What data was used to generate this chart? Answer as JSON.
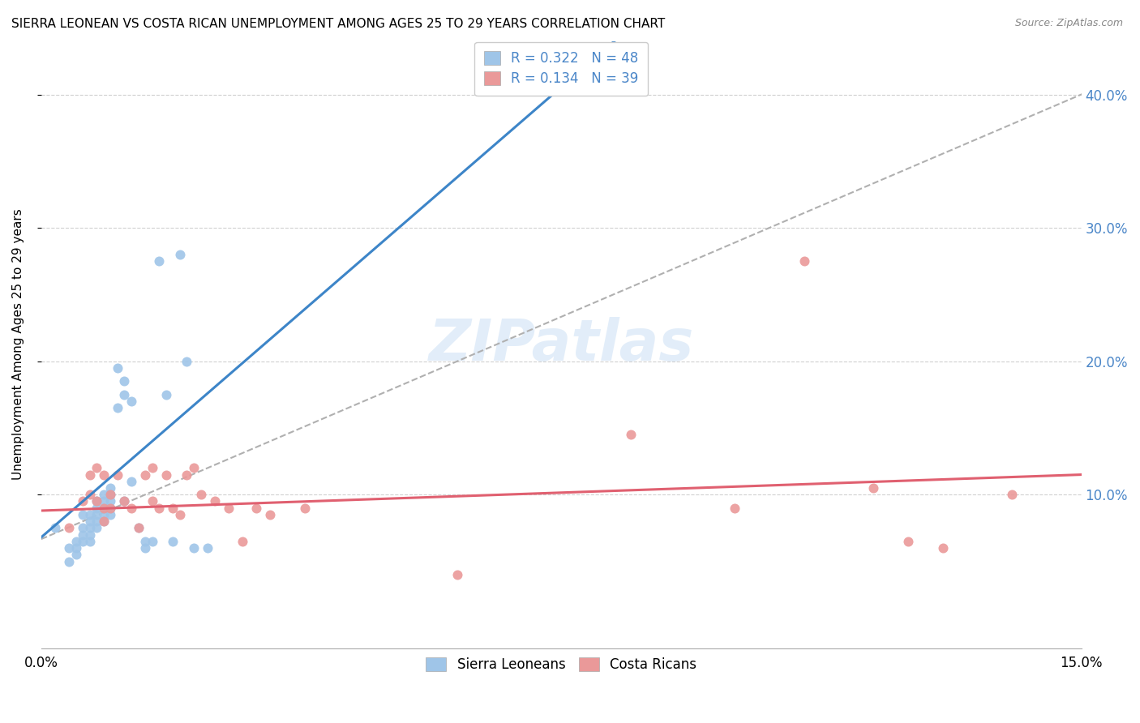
{
  "title": "SIERRA LEONEAN VS COSTA RICAN UNEMPLOYMENT AMONG AGES 25 TO 29 YEARS CORRELATION CHART",
  "source": "Source: ZipAtlas.com",
  "ylabel": "Unemployment Among Ages 25 to 29 years",
  "yticks": [
    0.1,
    0.2,
    0.3,
    0.4
  ],
  "ytick_labels": [
    "10.0%",
    "20.0%",
    "30.0%",
    "40.0%"
  ],
  "xlim": [
    0.0,
    0.15
  ],
  "ylim": [
    -0.015,
    0.44
  ],
  "legend_sl_R": "0.322",
  "legend_sl_N": "48",
  "legend_cr_R": "0.134",
  "legend_cr_N": "39",
  "color_sl": "#9fc5e8",
  "color_cr": "#ea9999",
  "color_sl_line": "#3d85c8",
  "color_cr_line": "#e06070",
  "color_dashed": "#b0b0b0",
  "watermark": "ZIPatlas",
  "sl_x": [
    0.002,
    0.004,
    0.004,
    0.005,
    0.005,
    0.005,
    0.006,
    0.006,
    0.006,
    0.006,
    0.007,
    0.007,
    0.007,
    0.007,
    0.007,
    0.008,
    0.008,
    0.008,
    0.008,
    0.008,
    0.009,
    0.009,
    0.009,
    0.009,
    0.009,
    0.01,
    0.01,
    0.01,
    0.01,
    0.01,
    0.011,
    0.011,
    0.012,
    0.012,
    0.012,
    0.013,
    0.013,
    0.014,
    0.015,
    0.015,
    0.016,
    0.017,
    0.018,
    0.019,
    0.02,
    0.021,
    0.022,
    0.024
  ],
  "sl_y": [
    0.075,
    0.06,
    0.05,
    0.065,
    0.06,
    0.055,
    0.085,
    0.075,
    0.07,
    0.065,
    0.085,
    0.08,
    0.075,
    0.07,
    0.065,
    0.09,
    0.085,
    0.08,
    0.095,
    0.075,
    0.095,
    0.09,
    0.085,
    0.08,
    0.1,
    0.095,
    0.09,
    0.085,
    0.105,
    0.1,
    0.165,
    0.195,
    0.185,
    0.175,
    0.095,
    0.17,
    0.11,
    0.075,
    0.065,
    0.06,
    0.065,
    0.275,
    0.175,
    0.065,
    0.28,
    0.2,
    0.06,
    0.06
  ],
  "cr_x": [
    0.004,
    0.006,
    0.007,
    0.007,
    0.008,
    0.008,
    0.009,
    0.009,
    0.009,
    0.01,
    0.01,
    0.011,
    0.012,
    0.013,
    0.014,
    0.015,
    0.016,
    0.016,
    0.017,
    0.018,
    0.019,
    0.02,
    0.021,
    0.022,
    0.023,
    0.025,
    0.027,
    0.029,
    0.031,
    0.033,
    0.038,
    0.06,
    0.085,
    0.1,
    0.11,
    0.12,
    0.125,
    0.13,
    0.14
  ],
  "cr_y": [
    0.075,
    0.095,
    0.115,
    0.1,
    0.12,
    0.095,
    0.09,
    0.08,
    0.115,
    0.1,
    0.09,
    0.115,
    0.095,
    0.09,
    0.075,
    0.115,
    0.12,
    0.095,
    0.09,
    0.115,
    0.09,
    0.085,
    0.115,
    0.12,
    0.1,
    0.095,
    0.09,
    0.065,
    0.09,
    0.085,
    0.09,
    0.04,
    0.145,
    0.09,
    0.275,
    0.105,
    0.065,
    0.06,
    0.1
  ]
}
